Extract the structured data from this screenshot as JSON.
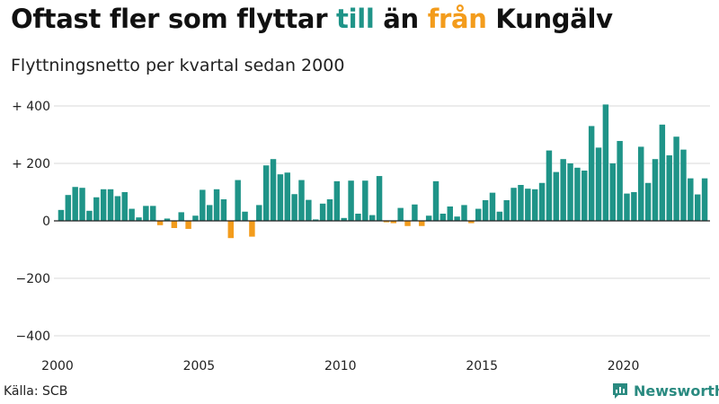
{
  "title": {
    "part1": "Oftast fler som flyttar ",
    "hl1": "till",
    "part2": " än ",
    "hl2": "från",
    "part3": " Kungälv"
  },
  "subtitle": "Flyttningsnetto per kvartal sedan 2000",
  "source": "Källa: SCB",
  "brand": "Newsworthy",
  "colors": {
    "positive": "#1f9488",
    "negative": "#f39c1c",
    "grid": "#d9d9d9",
    "zero": "#222222",
    "brand": "#2a8a80"
  },
  "chart_data": {
    "type": "bar",
    "title": "Flyttningsnetto per kvartal sedan 2000",
    "xlabel": "",
    "ylabel": "",
    "ylim": [
      -420,
      420
    ],
    "yticks": [
      {
        "value": 400,
        "label": "+ 400"
      },
      {
        "value": 200,
        "label": "+ 200"
      },
      {
        "value": 0,
        "label": "0"
      },
      {
        "value": -200,
        "label": "−200"
      },
      {
        "value": -400,
        "label": "−400"
      }
    ],
    "xticks": [
      "2000",
      "2005",
      "2010",
      "2015",
      "2020"
    ],
    "start_year": 2000,
    "values": [
      38,
      90,
      118,
      115,
      35,
      82,
      110,
      110,
      86,
      100,
      42,
      12,
      52,
      52,
      -15,
      8,
      -25,
      30,
      -28,
      18,
      108,
      55,
      110,
      75,
      -60,
      142,
      32,
      -55,
      55,
      193,
      215,
      162,
      168,
      93,
      142,
      73,
      5,
      60,
      75,
      138,
      10,
      140,
      25,
      140,
      20,
      156,
      -5,
      -8,
      45,
      -18,
      57,
      -18,
      18,
      138,
      25,
      50,
      15,
      55,
      -8,
      42,
      72,
      98,
      32,
      72,
      115,
      125,
      112,
      110,
      132,
      245,
      170,
      215,
      200,
      185,
      175,
      330,
      255,
      405,
      200,
      278,
      95,
      100,
      258,
      132,
      215,
      335,
      228,
      293,
      248,
      148,
      92,
      148
    ]
  }
}
